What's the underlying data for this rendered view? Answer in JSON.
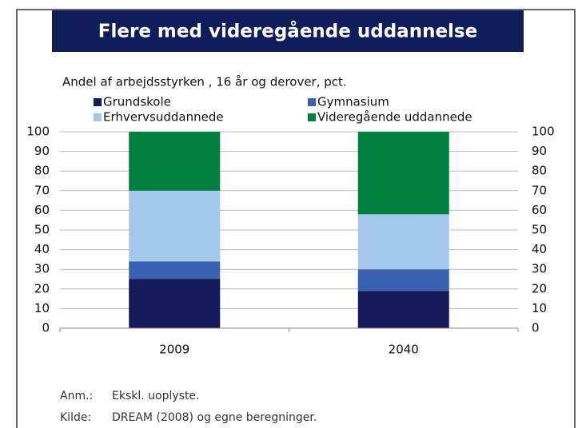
{
  "chart_data": {
    "type": "stacked_bar",
    "title": "Flere med videregående uddannelse",
    "subtitle": "Andel af arbejdsstyrken , 16 år og derover, pct.",
    "categories": [
      "2009",
      "2040"
    ],
    "series": [
      {
        "name": "Grundskole",
        "color": "#141a5a",
        "values": [
          25,
          19
        ]
      },
      {
        "name": "Gymnasium",
        "color": "#3a62b0",
        "values": [
          9,
          11
        ]
      },
      {
        "name": "Erhvervsuddannede",
        "color": "#a3c8eb",
        "values": [
          36,
          28
        ]
      },
      {
        "name": "Videregående uddannede",
        "color": "#00803e",
        "values": [
          30,
          42
        ]
      }
    ],
    "ylim": [
      0,
      100
    ],
    "yticks": [
      0,
      10,
      20,
      30,
      40,
      50,
      60,
      70,
      80,
      90,
      100
    ],
    "y2lim": [
      0,
      100
    ],
    "y2ticks": [
      0,
      10,
      20,
      30,
      40,
      50,
      60,
      70,
      80,
      90,
      100
    ],
    "grid": true,
    "notes": [
      {
        "label": "Anm.:",
        "text": "Ekskl. uoplyste."
      },
      {
        "label": "Kilde:",
        "text": "DREAM (2008) og egne beregninger."
      }
    ]
  }
}
